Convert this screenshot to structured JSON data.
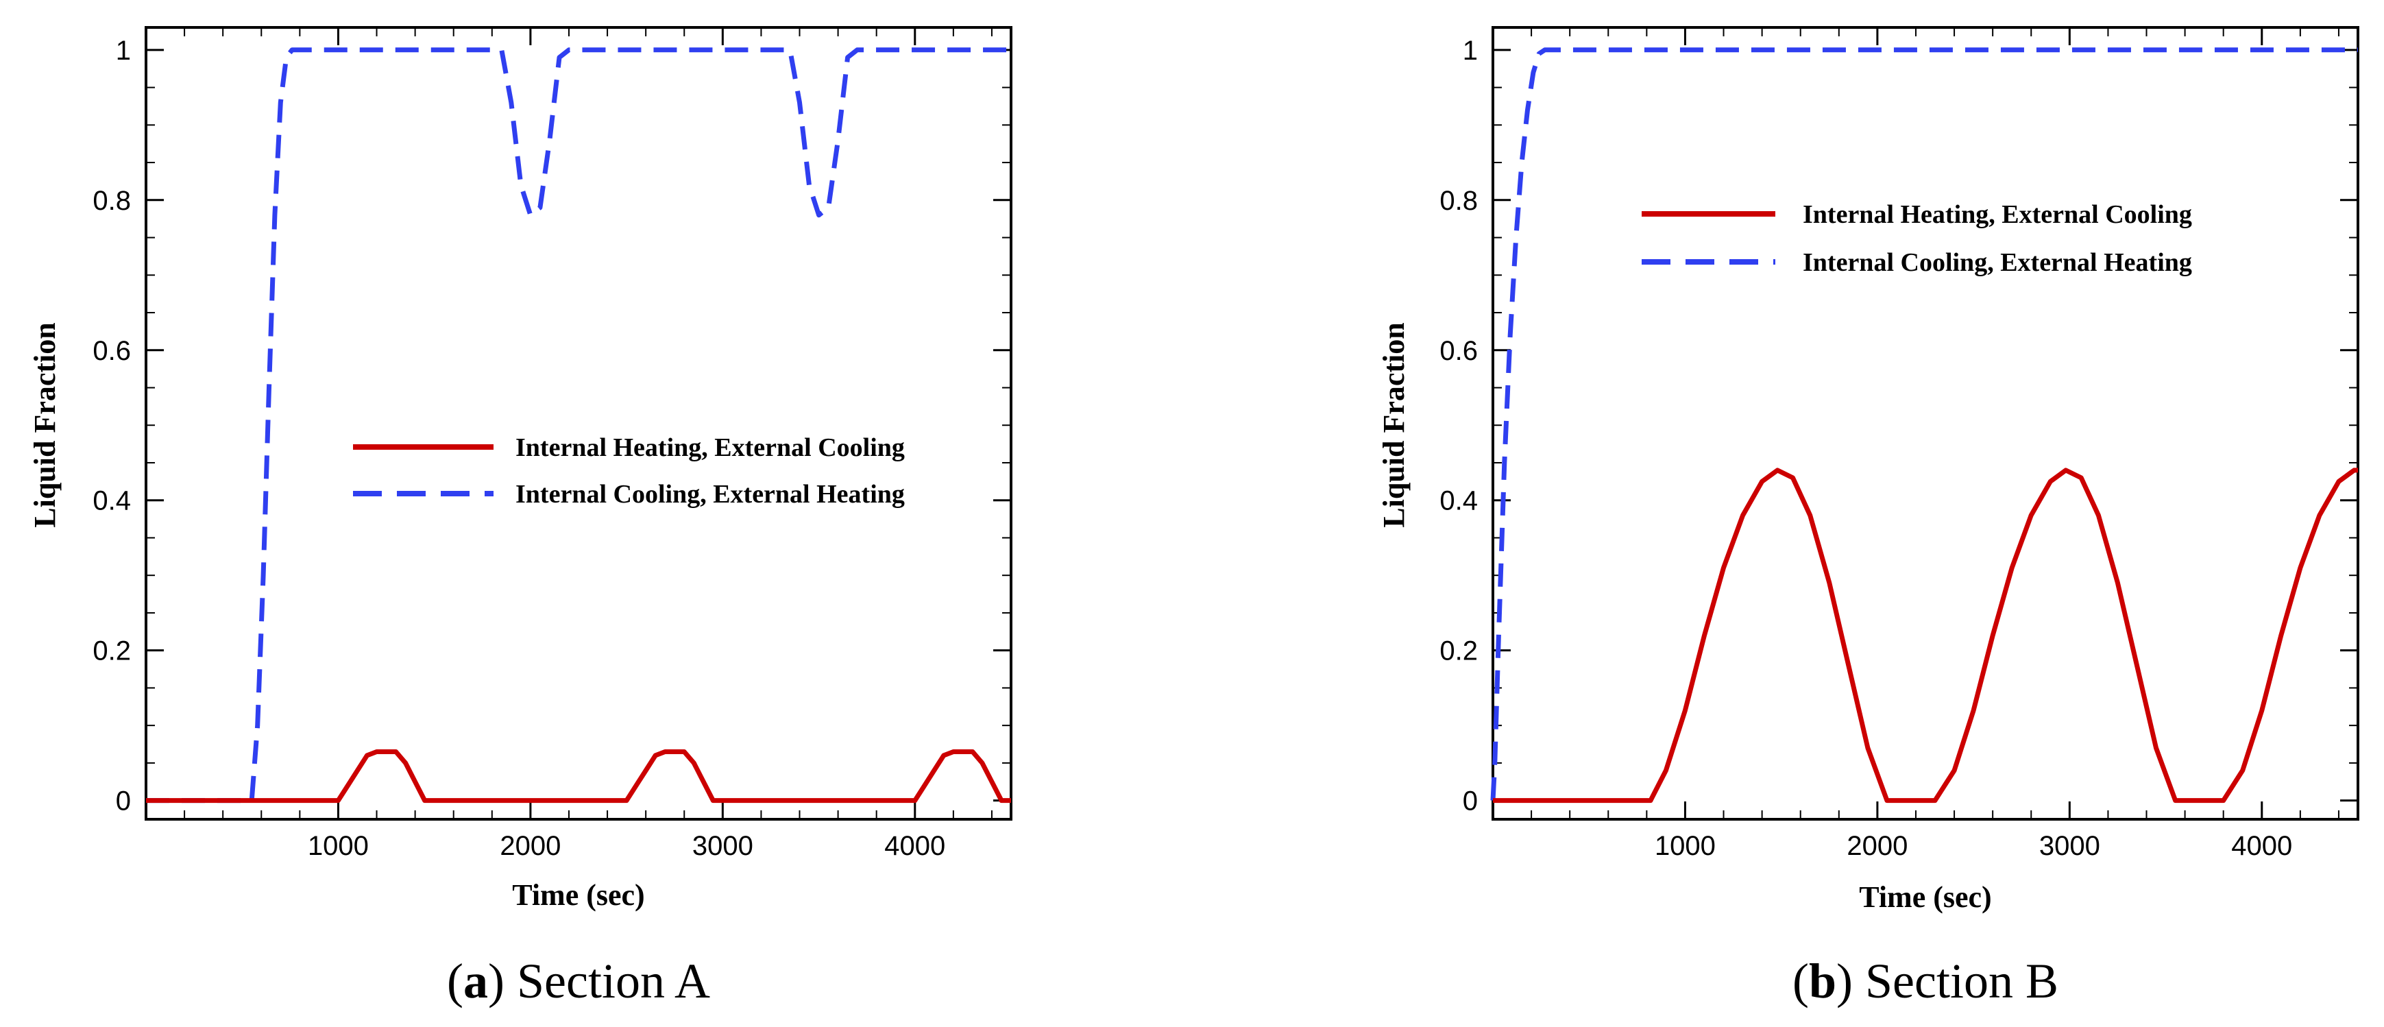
{
  "colors": {
    "heating": "#cc0000",
    "cooling": "#2f3ff0",
    "axis": "#000000"
  },
  "chart_data": [
    {
      "type": "line",
      "panel": "a",
      "caption_letter": "a",
      "caption_open": "(",
      "caption_close": ")",
      "caption_text": " Section A",
      "xlabel": "Time (sec)",
      "ylabel": "Liquid Fraction",
      "xlim": [
        0,
        4500
      ],
      "ylim": [
        -0.025,
        1.03
      ],
      "xticks": [
        1000,
        2000,
        3000,
        4000
      ],
      "xtick_labels": [
        "1000",
        "2000",
        "3000",
        "4000"
      ],
      "yticks": [
        0,
        0.2,
        0.4,
        0.6,
        0.8,
        1
      ],
      "ytick_labels": [
        "0",
        "0.2",
        "0.4",
        "0.6",
        "0.8",
        "1"
      ],
      "legend_position": "center-right",
      "series": [
        {
          "name": "Internal Heating, External Cooling",
          "style": "solid",
          "x": [
            0,
            1000,
            1050,
            1100,
            1150,
            1200,
            1300,
            1350,
            1400,
            1450,
            2500,
            2550,
            2600,
            2650,
            2700,
            2800,
            2850,
            2900,
            2950,
            4000,
            4050,
            4100,
            4150,
            4200,
            4300,
            4350,
            4400,
            4450,
            4500
          ],
          "y": [
            0,
            0,
            0.02,
            0.04,
            0.06,
            0.065,
            0.065,
            0.05,
            0.025,
            0,
            0,
            0.02,
            0.04,
            0.06,
            0.065,
            0.065,
            0.05,
            0.025,
            0,
            0,
            0.02,
            0.04,
            0.06,
            0.065,
            0.065,
            0.05,
            0.025,
            0,
            0
          ]
        },
        {
          "name": "Internal Cooling, External Heating",
          "style": "dashed",
          "x": [
            0,
            550,
            580,
            610,
            640,
            670,
            700,
            730,
            760,
            1850,
            1900,
            1950,
            2000,
            2050,
            2100,
            2150,
            2200,
            3350,
            3400,
            3450,
            3500,
            3550,
            3600,
            3650,
            3700,
            4500
          ],
          "y": [
            0,
            0,
            0.1,
            0.3,
            0.55,
            0.78,
            0.93,
            0.99,
            1,
            1,
            0.93,
            0.82,
            0.78,
            0.79,
            0.88,
            0.99,
            1,
            1,
            0.93,
            0.82,
            0.78,
            0.79,
            0.88,
            0.99,
            1,
            1
          ]
        }
      ]
    },
    {
      "type": "line",
      "panel": "b",
      "caption_letter": "b",
      "caption_open": "(",
      "caption_close": ")",
      "caption_text": " Section B",
      "xlabel": "Time (sec)",
      "ylabel": "Liquid Fraction",
      "xlim": [
        0,
        4500
      ],
      "ylim": [
        -0.025,
        1.03
      ],
      "xticks": [
        1000,
        2000,
        3000,
        4000
      ],
      "xtick_labels": [
        "1000",
        "2000",
        "3000",
        "4000"
      ],
      "yticks": [
        0,
        0.2,
        0.4,
        0.6,
        0.8,
        1
      ],
      "ytick_labels": [
        "0",
        "0.2",
        "0.4",
        "0.6",
        "0.8",
        "1"
      ],
      "legend_position": "top-right",
      "series": [
        {
          "name": "Internal Heating, External Cooling",
          "style": "solid",
          "x": [
            0,
            820,
            900,
            1000,
            1100,
            1200,
            1300,
            1400,
            1480,
            1560,
            1650,
            1750,
            1850,
            1950,
            2050,
            2300,
            2400,
            2500,
            2600,
            2700,
            2800,
            2900,
            2980,
            3060,
            3150,
            3250,
            3350,
            3450,
            3550,
            3800,
            3900,
            4000,
            4100,
            4200,
            4300,
            4400,
            4480,
            4500
          ],
          "y": [
            0,
            0,
            0.04,
            0.12,
            0.22,
            0.31,
            0.38,
            0.425,
            0.44,
            0.43,
            0.38,
            0.29,
            0.18,
            0.07,
            0,
            0,
            0.04,
            0.12,
            0.22,
            0.31,
            0.38,
            0.425,
            0.44,
            0.43,
            0.38,
            0.29,
            0.18,
            0.07,
            0,
            0,
            0.04,
            0.12,
            0.22,
            0.31,
            0.38,
            0.425,
            0.44,
            0.44
          ]
        },
        {
          "name": "Internal Cooling, External Heating",
          "style": "dashed",
          "x": [
            0,
            10,
            30,
            60,
            90,
            120,
            150,
            180,
            210,
            240,
            270,
            4500
          ],
          "y": [
            0,
            0.05,
            0.22,
            0.45,
            0.62,
            0.75,
            0.85,
            0.92,
            0.97,
            0.995,
            1,
            1
          ]
        }
      ]
    }
  ]
}
